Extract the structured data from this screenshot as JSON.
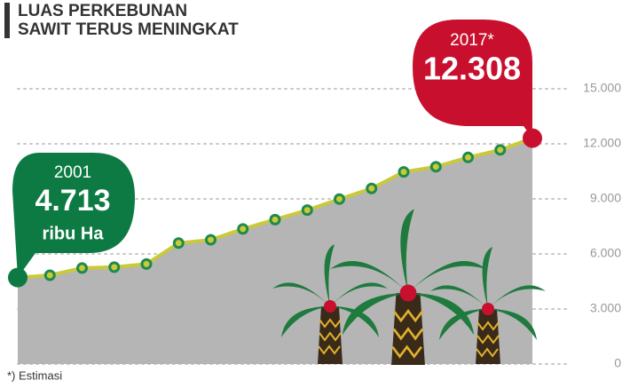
{
  "chart_data": {
    "type": "area",
    "title": [
      "LUAS PERKEBUNAN",
      "SAWIT TERUS MENINGKAT"
    ],
    "categories": [
      "2001",
      null,
      null,
      null,
      null,
      null,
      null,
      null,
      null,
      null,
      null,
      null,
      null,
      null,
      null,
      null,
      "2017*"
    ],
    "values": [
      4713,
      4840,
      5230,
      5280,
      5450,
      6590,
      6770,
      7360,
      7870,
      8390,
      8990,
      9570,
      10470,
      10750,
      11260,
      11670,
      12308
    ],
    "value_labels": [
      "4.713",
      null,
      null,
      null,
      null,
      null,
      null,
      null,
      null,
      null,
      null,
      null,
      null,
      null,
      null,
      null,
      "12.308"
    ],
    "unit": "ribu Ha",
    "note": "*) Estimasi",
    "ylim": [
      0,
      15000
    ],
    "yticks": [
      0,
      {
        "value": 3000,
        "label": "3.000"
      },
      {
        "value": 6000,
        "label": "6.000"
      },
      {
        "value": 9000,
        "label": "9.000"
      },
      {
        "value": 12000,
        "label": "12.000"
      },
      {
        "value": 15000,
        "label": "15.000"
      }
    ],
    "grid": true,
    "area_color": "#b5b5b5",
    "line_color": "#c9c93a",
    "marker_color": "#1e8a4c",
    "first_callout_color": "#0d7a44",
    "last_callout_color": "#c8102e"
  }
}
